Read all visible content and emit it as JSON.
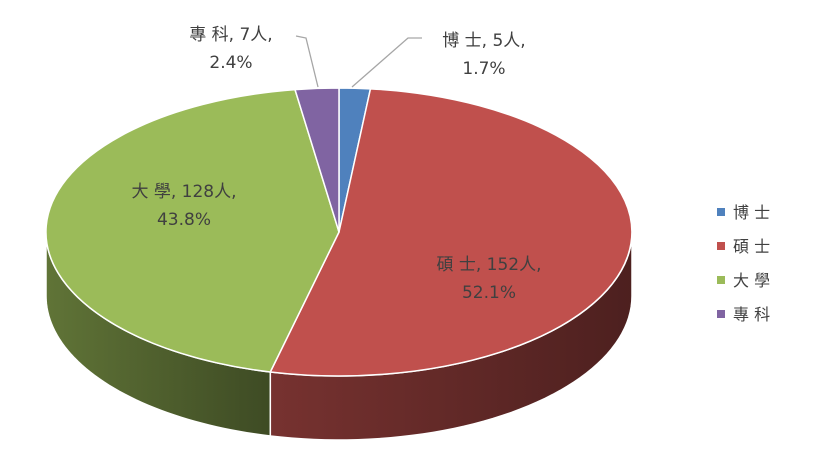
{
  "chart_data": {
    "type": "pie",
    "variant": "3d",
    "legend_position": "right",
    "categories": [
      "博 士",
      "碩 士",
      "大 學",
      "專 科"
    ],
    "values": [
      5,
      152,
      128,
      7
    ],
    "percent_labels": [
      "1.7%",
      "52.1%",
      "43.8%",
      "2.4%"
    ],
    "data_labels": [
      "博 士, 5人,",
      "碩 士, 152人,",
      "大 學, 128人,",
      "專 科, 7人,"
    ],
    "unit": "人",
    "colors": [
      "#4f81bd",
      "#c0504d",
      "#9bbb59",
      "#8064a2"
    ]
  }
}
